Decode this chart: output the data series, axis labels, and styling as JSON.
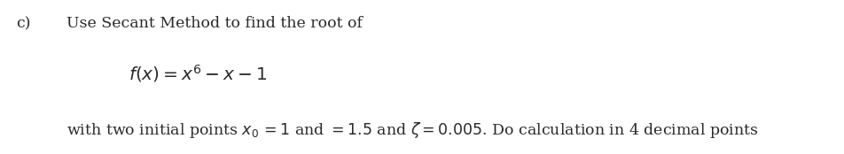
{
  "background_color": "#ffffff",
  "label_c": "c)",
  "line1": "Use Secant Method to find the root of",
  "formula": "$f(x) = x^6 - x - 1$",
  "bottom_line": "with two initial points $x_0\\,=1$ and $=1.5$ and $\\zeta=0.005$. Do calculation in 4 decimal points",
  "font_size_main": 12.5,
  "font_size_formula": 14.5,
  "text_color": "#2a2a2a",
  "fig_width": 9.52,
  "fig_height": 1.74,
  "dpi": 100
}
